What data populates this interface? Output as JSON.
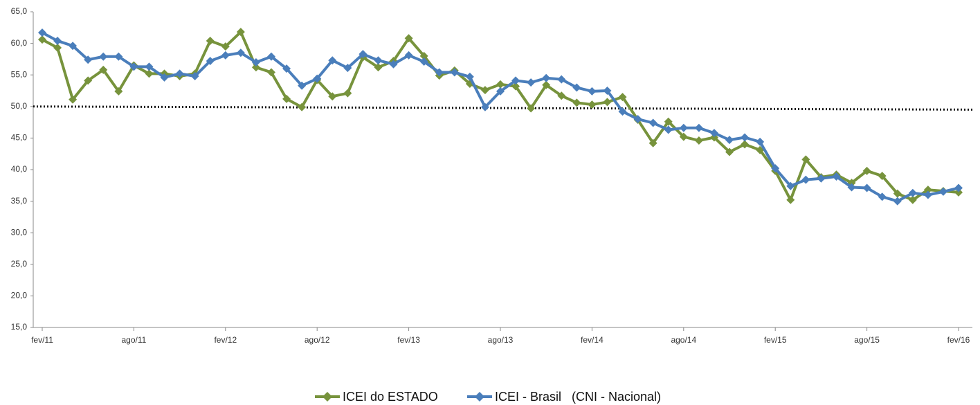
{
  "chart_data": {
    "type": "line",
    "categories": [
      "fev/11",
      null,
      null,
      null,
      null,
      null,
      "ago/11",
      null,
      null,
      null,
      null,
      null,
      "fev/12",
      null,
      null,
      null,
      null,
      null,
      "ago/12",
      null,
      null,
      null,
      null,
      null,
      "fev/13",
      null,
      null,
      null,
      null,
      null,
      "ago/13",
      null,
      null,
      null,
      null,
      null,
      "fev/14",
      null,
      null,
      null,
      null,
      null,
      "ago/14",
      null,
      null,
      null,
      null,
      null,
      "fev/15",
      null,
      null,
      null,
      null,
      null,
      "ago/15",
      null,
      null,
      null,
      null,
      null,
      "fev/16"
    ],
    "series": [
      {
        "name": "ICEI do ESTADO",
        "color": "#77933c",
        "values": [
          60.6,
          59.3,
          51.1,
          54.1,
          55.8,
          52.4,
          56.5,
          55.2,
          55.2,
          54.8,
          55.2,
          60.4,
          59.5,
          61.8,
          56.2,
          55.4,
          51.2,
          49.9,
          54.2,
          51.6,
          52.1,
          57.8,
          56.2,
          57.2,
          60.8,
          58.0,
          54.9,
          55.7,
          53.6,
          52.6,
          53.5,
          53.2,
          49.7,
          53.4,
          51.7,
          50.6,
          50.3,
          50.7,
          51.5,
          47.9,
          44.2,
          47.6,
          45.2,
          44.6,
          45.1,
          42.8,
          44.0,
          43.1,
          39.8,
          35.2,
          41.6,
          38.8,
          39.2,
          37.9,
          39.8,
          39.0,
          36.2,
          35.2,
          36.8,
          36.6,
          36.4
        ]
      },
      {
        "name": "ICEI - Brasil   (CNI - Nacional)",
        "color": "#4a7ebb",
        "values": [
          61.7,
          60.4,
          59.6,
          57.4,
          57.9,
          57.9,
          56.3,
          56.3,
          54.6,
          55.2,
          54.8,
          57.2,
          58.1,
          58.5,
          57.0,
          57.9,
          56.0,
          53.3,
          54.4,
          57.3,
          56.1,
          58.3,
          57.3,
          56.7,
          58.1,
          57.1,
          55.4,
          55.4,
          54.7,
          49.9,
          52.4,
          54.1,
          53.8,
          54.5,
          54.3,
          53.0,
          52.4,
          52.5,
          49.2,
          48.0,
          47.4,
          46.3,
          46.6,
          46.6,
          45.8,
          44.7,
          45.1,
          44.4,
          40.2,
          37.4,
          38.4,
          38.6,
          38.9,
          37.2,
          37.1,
          35.7,
          35.0,
          36.3,
          36.0,
          36.5,
          37.1
        ]
      }
    ],
    "trend_line": [
      50.0,
      49.5
    ],
    "ylim": [
      15,
      65
    ],
    "yticks": [
      {
        "value": 15,
        "label": "15,0"
      },
      {
        "value": 20,
        "label": "20,0"
      },
      {
        "value": 25,
        "label": "25,0"
      },
      {
        "value": 30,
        "label": "30,0"
      },
      {
        "value": 35,
        "label": "35,0"
      },
      {
        "value": 40,
        "label": "40,0"
      },
      {
        "value": 45,
        "label": "45,0"
      },
      {
        "value": 50,
        "label": "50,0"
      },
      {
        "value": 55,
        "label": "55,0"
      },
      {
        "value": 60,
        "label": "60,0"
      },
      {
        "value": 65,
        "label": "65,0"
      }
    ],
    "legend": "bottom"
  }
}
